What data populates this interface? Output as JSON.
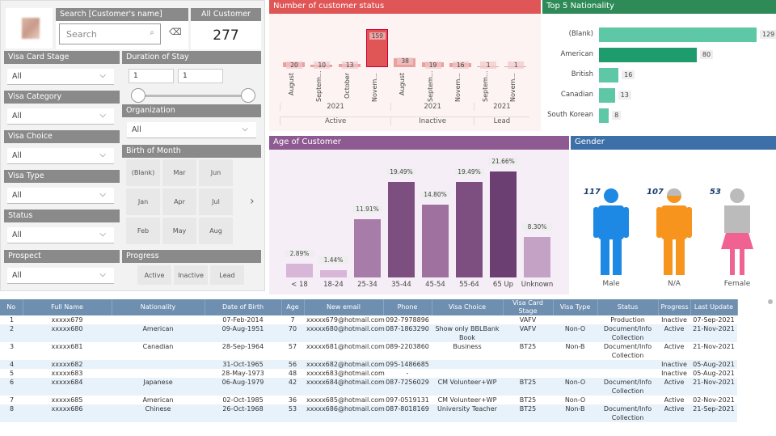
{
  "filters": {
    "search_title": "Search [Customer's name]",
    "search_placeholder": "Search",
    "all_customer_title": "All Customer",
    "all_customer_value": "277",
    "visa_card_stage": {
      "label": "Visa Card Stage",
      "value": "All"
    },
    "visa_category": {
      "label": "Visa Category",
      "value": "All"
    },
    "visa_choice": {
      "label": "Visa Choice",
      "value": "All"
    },
    "visa_type": {
      "label": "Visa Type",
      "value": "All"
    },
    "status": {
      "label": "Status",
      "value": "All"
    },
    "prospect": {
      "label": "Prospect",
      "value": "All"
    },
    "duration": {
      "label": "Duration of Stay",
      "min": "1",
      "max": "1"
    },
    "organization": {
      "label": "Organization",
      "value": "All"
    },
    "birth_month": {
      "label": "Birth of Month",
      "months": [
        "(Blank)",
        "Mar",
        "Jun",
        "Jan",
        "Apr",
        "Jul",
        "Feb",
        "May",
        "Aug"
      ]
    },
    "progress": {
      "label": "Progress",
      "options": [
        "Active",
        "Inactive",
        "Lead"
      ]
    }
  },
  "chart_data": [
    {
      "type": "bar",
      "title": "Number of customer status",
      "categories": [
        "August",
        "Septem...",
        "October",
        "Novem...",
        "August",
        "Septem...",
        "Novem...",
        "Septem...",
        "Novem..."
      ],
      "years": [
        "2021",
        "2021",
        "2021"
      ],
      "groups": [
        "Active",
        "Inactive",
        "Lead"
      ],
      "group_of": [
        0,
        0,
        0,
        0,
        1,
        1,
        1,
        2,
        2
      ],
      "values": [
        20,
        10,
        13,
        159,
        38,
        19,
        16,
        1,
        1
      ],
      "color": "#e05555"
    },
    {
      "type": "bar",
      "title": "Top 5 Nationality",
      "orientation": "horizontal",
      "categories": [
        "(Blank)",
        "American",
        "British",
        "Canadian",
        "South Korean"
      ],
      "values": [
        129,
        80,
        16,
        13,
        8
      ],
      "color": "#4fc3a1"
    },
    {
      "type": "bar",
      "title": "Age of Customer",
      "categories": [
        "< 18",
        "18-24",
        "25-34",
        "35-44",
        "45-54",
        "55-64",
        "65 Up",
        "Unknown"
      ],
      "values": [
        2.89,
        1.44,
        11.91,
        19.49,
        14.8,
        19.49,
        21.66,
        8.3
      ],
      "labels": [
        "2.89%",
        "1.44%",
        "11.91%",
        "19.49%",
        "14.80%",
        "19.49%",
        "21.66%",
        "8.30%"
      ]
    },
    {
      "type": "pictogram",
      "title": "Gender",
      "categories": [
        "Male",
        "N/A",
        "Female"
      ],
      "values": [
        117,
        107,
        53
      ],
      "colors": [
        "#1e88e5",
        "#f7941d",
        "#f06292"
      ]
    }
  ],
  "table": {
    "columns": [
      "No",
      "Full Name",
      "Nationality",
      "Date of Birth",
      "Age",
      "New email",
      "Phone",
      "Visa Choice",
      "Visa Card Stage",
      "Visa Type",
      "Status",
      "Progress",
      "Last Update"
    ],
    "rows": [
      [
        "1",
        "xxxxx679",
        "",
        "07-Feb-2014",
        "7",
        "xxxxx679@hotmail.com",
        "092-7978896",
        "",
        "VAFV",
        "",
        "Production",
        "Inactive",
        "07-Sep-2021"
      ],
      [
        "2",
        "xxxxx680",
        "American",
        "09-Aug-1951",
        "70",
        "xxxxx680@hotmail.com",
        "087-1863290",
        "Show only BBLBank Book",
        "VAFV",
        "Non-O",
        "Document/Info Collection",
        "Active",
        "21-Nov-2021"
      ],
      [
        "3",
        "xxxxx681",
        "Canadian",
        "28-Sep-1964",
        "57",
        "xxxxx681@hotmail.com",
        "089-2203860",
        "Business",
        "BT25",
        "Non-B",
        "Document/Info Collection",
        "Active",
        "21-Nov-2021"
      ],
      [
        "4",
        "xxxxx682",
        "",
        "31-Oct-1965",
        "56",
        "xxxxx682@hotmail.com",
        "095-1486685",
        "",
        "",
        "",
        "",
        "Inactive",
        "05-Aug-2021"
      ],
      [
        "5",
        "xxxxx683",
        "",
        "28-May-1973",
        "48",
        "xxxxx683@hotmail.com",
        "-",
        "",
        "",
        "",
        "",
        "Inactive",
        "05-Aug-2021"
      ],
      [
        "6",
        "xxxxx684",
        "Japanese",
        "06-Aug-1979",
        "42",
        "xxxxx684@hotmail.com",
        "087-7256029",
        "CM Volunteer+WP",
        "BT25",
        "Non-O",
        "Document/Info Collection",
        "Active",
        "21-Nov-2021"
      ],
      [
        "7",
        "xxxxx685",
        "American",
        "02-Oct-1985",
        "36",
        "xxxxx685@hotmail.com",
        "097-0519131",
        "CM Volunteer+WP",
        "BT25",
        "Non-O",
        "",
        "Active",
        "02-Nov-2021"
      ],
      [
        "8",
        "xxxxx686",
        "Chinese",
        "26-Oct-1968",
        "53",
        "xxxxx686@hotmail.com",
        "087-8018169",
        "University Teacher",
        "BT25",
        "Non-B",
        "Document/Info Collection",
        "Active",
        "21-Sep-2021"
      ]
    ]
  }
}
